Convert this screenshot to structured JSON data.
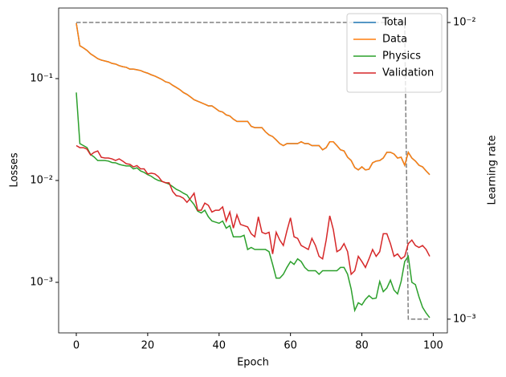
{
  "chart_data": {
    "type": "line",
    "xlabel": "Epoch",
    "ylabel": "Losses",
    "y2label": "Learning rate",
    "x": [
      0,
      1,
      2,
      3,
      4,
      5,
      6,
      7,
      8,
      9,
      10,
      11,
      12,
      13,
      14,
      15,
      16,
      17,
      18,
      19,
      20,
      21,
      22,
      23,
      24,
      25,
      26,
      27,
      28,
      29,
      30,
      31,
      32,
      33,
      34,
      35,
      36,
      37,
      38,
      39,
      40,
      41,
      42,
      43,
      44,
      45,
      46,
      47,
      48,
      49,
      50,
      51,
      52,
      53,
      54,
      55,
      56,
      57,
      58,
      59,
      60,
      61,
      62,
      63,
      64,
      65,
      66,
      67,
      68,
      69,
      70,
      71,
      72,
      73,
      74,
      75,
      76,
      77,
      78,
      79,
      80,
      81,
      82,
      83,
      84,
      85,
      86,
      87,
      88,
      89,
      90,
      91,
      92,
      93,
      94,
      95,
      96,
      97,
      98,
      99
    ],
    "xlim": [
      -4.95,
      103.95
    ],
    "xticks": [
      0,
      20,
      40,
      60,
      80,
      100
    ],
    "ylim": [
      0.000319,
      0.493
    ],
    "yscale": "log",
    "yticks": [
      {
        "value": 0.1,
        "label": "10⁻¹"
      },
      {
        "value": 0.01,
        "label": "10⁻²"
      },
      {
        "value": 0.001,
        "label": "10⁻³"
      }
    ],
    "y2lim": [
      0.000899,
      0.01119
    ],
    "y2scale": "log",
    "y2ticks": [
      {
        "value": 0.01,
        "label": "10⁻²"
      },
      {
        "value": 0.001,
        "label": "10⁻³"
      }
    ],
    "legend": "upper right",
    "series": [
      {
        "name": "Total",
        "color": "#1f77b4",
        "values": [
          0.35,
          0.21,
          0.2,
          0.189,
          0.175,
          0.166,
          0.157,
          0.152,
          0.149,
          0.146,
          0.141,
          0.139,
          0.134,
          0.131,
          0.129,
          0.124,
          0.124,
          0.122,
          0.12,
          0.116,
          0.113,
          0.109,
          0.106,
          0.102,
          0.098,
          0.093,
          0.091,
          0.086,
          0.082,
          0.078,
          0.073,
          0.07,
          0.066,
          0.062,
          0.06,
          0.058,
          0.056,
          0.054,
          0.054,
          0.051,
          0.048,
          0.047,
          0.044,
          0.043,
          0.04,
          0.038,
          0.038,
          0.038,
          0.038,
          0.034,
          0.033,
          0.033,
          0.033,
          0.03,
          0.028,
          0.027,
          0.025,
          0.023,
          0.022,
          0.023,
          0.023,
          0.023,
          0.023,
          0.024,
          0.023,
          0.023,
          0.022,
          0.022,
          0.022,
          0.02,
          0.021,
          0.024,
          0.024,
          0.022,
          0.02,
          0.0195,
          0.0169,
          0.0157,
          0.0134,
          0.0127,
          0.0136,
          0.0127,
          0.0129,
          0.0149,
          0.0155,
          0.0157,
          0.0166,
          0.0189,
          0.0189,
          0.0182,
          0.0166,
          0.0169,
          0.0141,
          0.0189,
          0.0166,
          0.0155,
          0.0141,
          0.0136,
          0.0124,
          0.0114
        ]
      },
      {
        "name": "Data",
        "color": "#ff7f0e",
        "values": [
          0.35,
          0.21,
          0.2,
          0.189,
          0.175,
          0.166,
          0.157,
          0.152,
          0.149,
          0.146,
          0.141,
          0.139,
          0.134,
          0.131,
          0.129,
          0.124,
          0.124,
          0.122,
          0.12,
          0.116,
          0.113,
          0.109,
          0.106,
          0.102,
          0.098,
          0.093,
          0.091,
          0.086,
          0.082,
          0.078,
          0.073,
          0.07,
          0.066,
          0.062,
          0.06,
          0.058,
          0.056,
          0.054,
          0.054,
          0.051,
          0.048,
          0.047,
          0.044,
          0.043,
          0.04,
          0.038,
          0.038,
          0.038,
          0.038,
          0.034,
          0.033,
          0.033,
          0.033,
          0.03,
          0.028,
          0.027,
          0.025,
          0.023,
          0.022,
          0.023,
          0.023,
          0.023,
          0.023,
          0.024,
          0.023,
          0.023,
          0.022,
          0.022,
          0.022,
          0.02,
          0.021,
          0.024,
          0.024,
          0.022,
          0.02,
          0.0195,
          0.0169,
          0.0157,
          0.0134,
          0.0127,
          0.0136,
          0.0127,
          0.0129,
          0.0149,
          0.0155,
          0.0157,
          0.0166,
          0.0189,
          0.0189,
          0.0182,
          0.0166,
          0.0169,
          0.0141,
          0.0189,
          0.0166,
          0.0155,
          0.0141,
          0.0136,
          0.0124,
          0.0114
        ]
      },
      {
        "name": "Physics",
        "color": "#2ca02c",
        "values": [
          0.073,
          0.023,
          0.022,
          0.021,
          0.018,
          0.017,
          0.0157,
          0.0157,
          0.0157,
          0.0155,
          0.015,
          0.0149,
          0.0144,
          0.0141,
          0.0139,
          0.0139,
          0.013,
          0.0133,
          0.0124,
          0.012,
          0.0114,
          0.011,
          0.0104,
          0.01,
          0.0098,
          0.0095,
          0.0092,
          0.0087,
          0.0082,
          0.0079,
          0.0075,
          0.0072,
          0.0064,
          0.0058,
          0.005,
          0.0048,
          0.0051,
          0.0044,
          0.004,
          0.0039,
          0.0038,
          0.004,
          0.0034,
          0.0036,
          0.0028,
          0.0028,
          0.0028,
          0.0029,
          0.0021,
          0.0022,
          0.0021,
          0.0021,
          0.0021,
          0.0021,
          0.002,
          0.0015,
          0.0011,
          0.0011,
          0.0012,
          0.0014,
          0.0016,
          0.0015,
          0.0017,
          0.0016,
          0.0014,
          0.0013,
          0.0013,
          0.0013,
          0.0012,
          0.0013,
          0.0013,
          0.0013,
          0.0013,
          0.0013,
          0.0014,
          0.0014,
          0.0012,
          0.00086,
          0.00053,
          0.00063,
          0.0006,
          0.00068,
          0.00074,
          0.00069,
          0.0007,
          0.00102,
          0.00081,
          0.00088,
          0.00105,
          0.00084,
          0.00077,
          0.00102,
          0.0016,
          0.0018,
          0.001,
          0.00095,
          0.00072,
          0.00057,
          0.0005,
          0.00045
        ]
      },
      {
        "name": "Validation",
        "color": "#d62728",
        "values": [
          0.022,
          0.021,
          0.021,
          0.0203,
          0.0178,
          0.0189,
          0.0195,
          0.0169,
          0.0166,
          0.0166,
          0.0163,
          0.0157,
          0.0163,
          0.0155,
          0.0146,
          0.0144,
          0.0136,
          0.014,
          0.013,
          0.013,
          0.0116,
          0.0118,
          0.0116,
          0.0109,
          0.0098,
          0.0095,
          0.0095,
          0.0078,
          0.0071,
          0.007,
          0.0067,
          0.0061,
          0.0067,
          0.0075,
          0.0051,
          0.0051,
          0.006,
          0.0057,
          0.0049,
          0.0051,
          0.0051,
          0.0055,
          0.004,
          0.0049,
          0.0034,
          0.0046,
          0.0037,
          0.0036,
          0.0035,
          0.003,
          0.0028,
          0.0044,
          0.0031,
          0.003,
          0.0031,
          0.0019,
          0.0031,
          0.0026,
          0.0023,
          0.0032,
          0.0043,
          0.0028,
          0.0027,
          0.0023,
          0.0022,
          0.0021,
          0.0027,
          0.0023,
          0.0018,
          0.0017,
          0.0026,
          0.0045,
          0.0033,
          0.002,
          0.0021,
          0.0024,
          0.002,
          0.0012,
          0.0013,
          0.0018,
          0.0016,
          0.0014,
          0.0017,
          0.0021,
          0.0018,
          0.002,
          0.003,
          0.003,
          0.0024,
          0.0018,
          0.0019,
          0.0017,
          0.0018,
          0.0024,
          0.0026,
          0.0023,
          0.0022,
          0.0023,
          0.0021,
          0.0018
        ]
      }
    ],
    "y2_series": {
      "axis": "y2",
      "color": "#808080",
      "linestyle": "dashed",
      "values": [
        0.01,
        0.01,
        0.01,
        0.01,
        0.01,
        0.01,
        0.01,
        0.01,
        0.01,
        0.01,
        0.01,
        0.01,
        0.01,
        0.01,
        0.01,
        0.01,
        0.01,
        0.01,
        0.01,
        0.01,
        0.01,
        0.01,
        0.01,
        0.01,
        0.01,
        0.01,
        0.01,
        0.01,
        0.01,
        0.01,
        0.01,
        0.01,
        0.01,
        0.01,
        0.01,
        0.01,
        0.01,
        0.01,
        0.01,
        0.01,
        0.01,
        0.01,
        0.01,
        0.01,
        0.01,
        0.01,
        0.01,
        0.01,
        0.01,
        0.01,
        0.01,
        0.01,
        0.01,
        0.01,
        0.01,
        0.01,
        0.01,
        0.01,
        0.01,
        0.01,
        0.01,
        0.01,
        0.01,
        0.01,
        0.01,
        0.01,
        0.01,
        0.01,
        0.01,
        0.01,
        0.01,
        0.01,
        0.01,
        0.01,
        0.01,
        0.01,
        0.01,
        0.01,
        0.01,
        0.01,
        0.01,
        0.01,
        0.01,
        0.01,
        0.01,
        0.01,
        0.01,
        0.01,
        0.01,
        0.01,
        0.01,
        0.01,
        0.01,
        0.001,
        0.001,
        0.001,
        0.001,
        0.001,
        0.001,
        0.001
      ]
    }
  }
}
